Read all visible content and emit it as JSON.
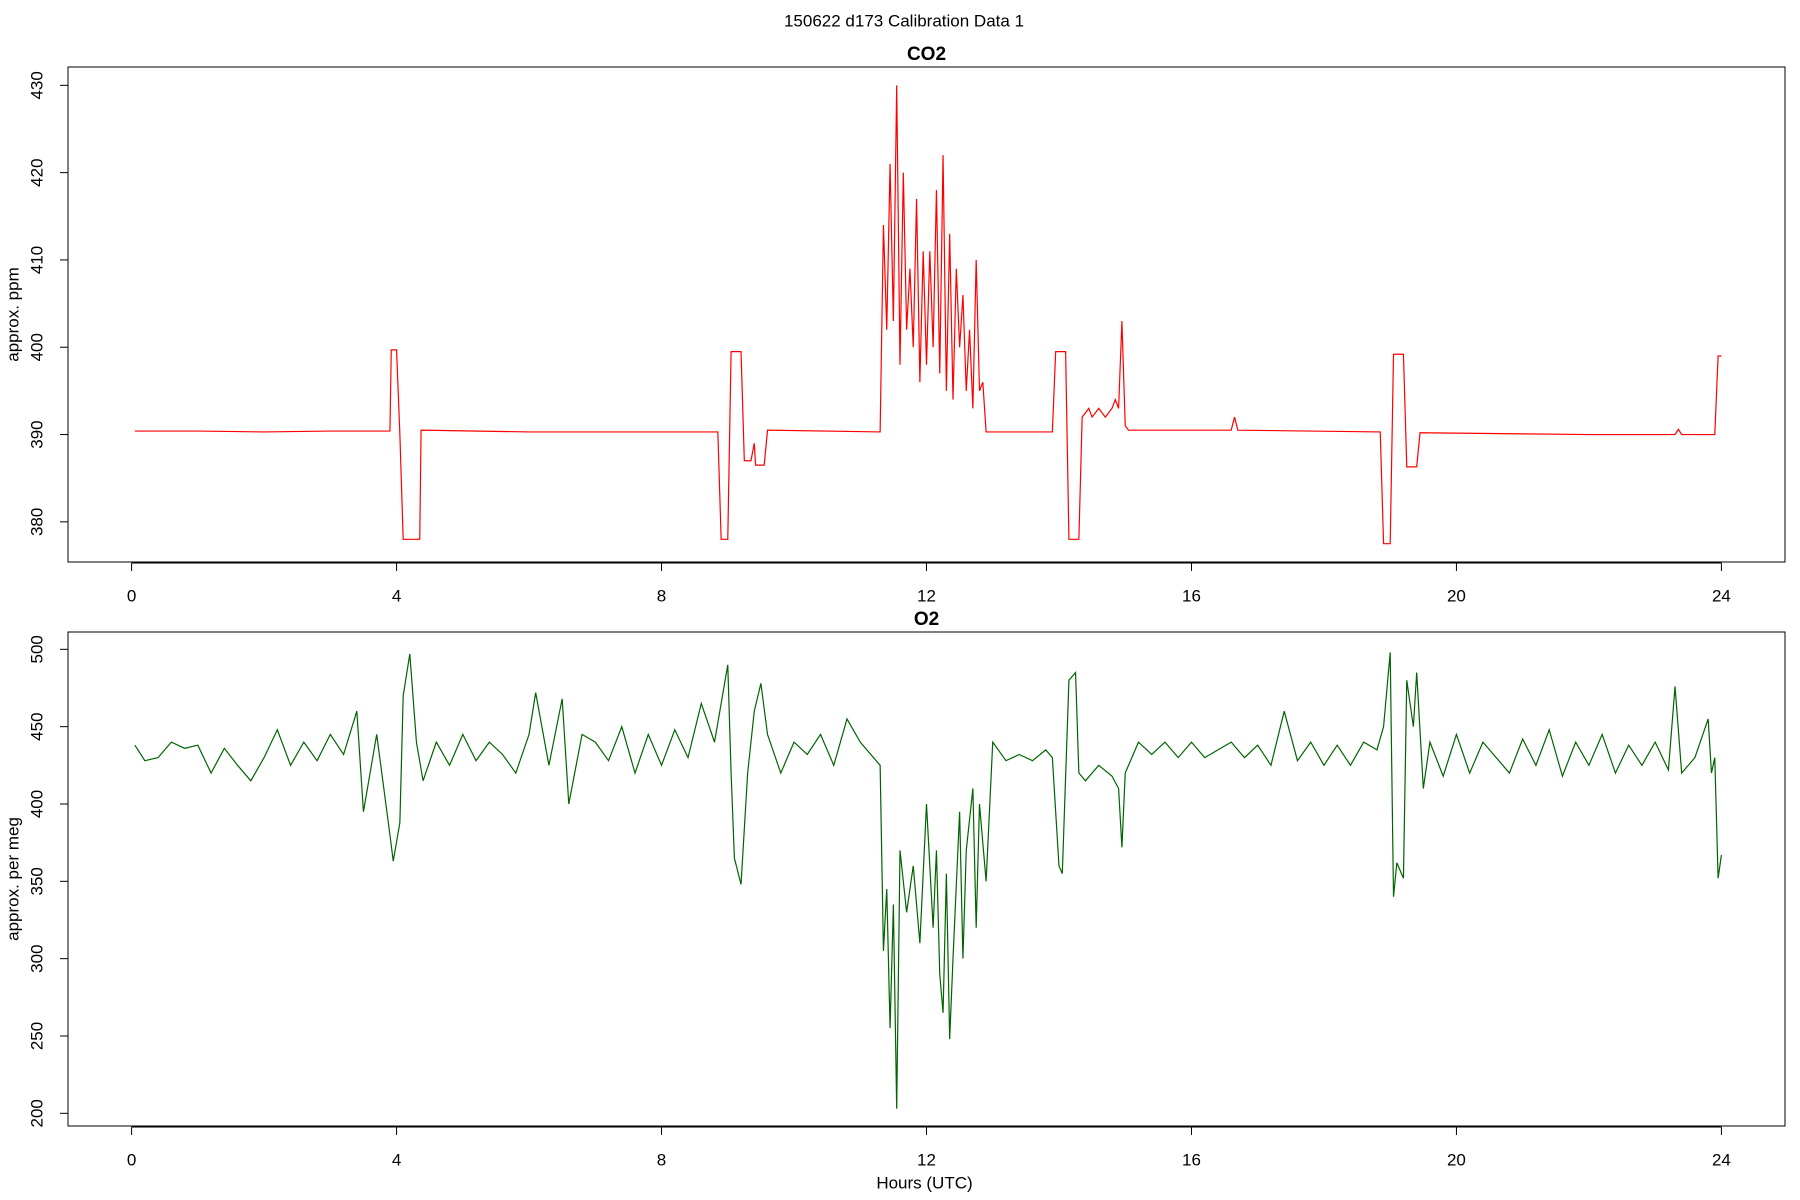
{
  "title": "150622   d173   Calibration Data 1",
  "chart_data": [
    {
      "type": "line",
      "title": "CO2",
      "y_label": "approx. ppm",
      "color": "#ff0000",
      "xlim": [
        -0.96,
        24.96
      ],
      "xticks": [
        0,
        4,
        8,
        12,
        16,
        20,
        24
      ],
      "ylim": [
        375.4,
        432.1
      ],
      "yticks": [
        380,
        390,
        400,
        410,
        420,
        430
      ],
      "x": [
        0.05,
        1.0,
        2.0,
        3.0,
        3.9,
        3.92,
        4.0,
        4.05,
        4.1,
        4.35,
        4.37,
        6.0,
        8.85,
        8.9,
        9.0,
        9.05,
        9.2,
        9.25,
        9.35,
        9.4,
        9.42,
        9.55,
        9.6,
        11.3,
        11.35,
        11.4,
        11.45,
        11.5,
        11.55,
        11.6,
        11.65,
        11.7,
        11.75,
        11.8,
        11.85,
        11.9,
        11.95,
        12.0,
        12.05,
        12.1,
        12.15,
        12.2,
        12.25,
        12.3,
        12.35,
        12.4,
        12.45,
        12.5,
        12.55,
        12.6,
        12.65,
        12.7,
        12.75,
        12.8,
        12.85,
        12.9,
        13.9,
        13.95,
        14.1,
        14.15,
        14.3,
        14.35,
        14.45,
        14.5,
        14.6,
        14.7,
        14.8,
        14.85,
        14.9,
        14.95,
        15.0,
        15.05,
        16.6,
        16.65,
        16.7,
        18.85,
        18.9,
        19.0,
        19.05,
        19.2,
        19.25,
        19.4,
        19.45,
        22.0,
        23.3,
        23.35,
        23.4,
        23.9,
        23.95,
        24.0
      ],
      "values": [
        390.4,
        390.4,
        390.3,
        390.4,
        390.4,
        399.7,
        399.7,
        390,
        378,
        378,
        390.5,
        390.3,
        390.3,
        378,
        378,
        399.5,
        399.5,
        387,
        387,
        389,
        386.5,
        386.5,
        390.5,
        390.3,
        414,
        402,
        421,
        403,
        430,
        398,
        420,
        402,
        409,
        400,
        417,
        396,
        411,
        398,
        411,
        400,
        418,
        397,
        422,
        395,
        413,
        394,
        409,
        400,
        406,
        395,
        402,
        393,
        410,
        395,
        396,
        390.3,
        390.3,
        399.5,
        399.5,
        378,
        378,
        392,
        393,
        392,
        393,
        392,
        393,
        394,
        393,
        403,
        391,
        390.5,
        390.5,
        392,
        390.5,
        390.3,
        377.5,
        377.5,
        399.2,
        399.2,
        386.3,
        386.3,
        390.2,
        390,
        390,
        390.6,
        390,
        390,
        399,
        399
      ]
    },
    {
      "type": "line",
      "title": "O2",
      "y_label": "approx. per meg",
      "x_label": "Hours (UTC)",
      "color": "#006400",
      "xlim": [
        -0.96,
        24.96
      ],
      "xticks": [
        0,
        4,
        8,
        12,
        16,
        20,
        24
      ],
      "ylim": [
        191.8,
        511.2
      ],
      "yticks": [
        200,
        250,
        300,
        350,
        400,
        450,
        500
      ],
      "x": [
        0.05,
        0.2,
        0.4,
        0.6,
        0.8,
        1.0,
        1.2,
        1.4,
        1.6,
        1.8,
        2.0,
        2.2,
        2.4,
        2.6,
        2.8,
        3.0,
        3.2,
        3.4,
        3.5,
        3.7,
        3.9,
        3.95,
        4.05,
        4.1,
        4.2,
        4.3,
        4.4,
        4.6,
        4.8,
        5.0,
        5.2,
        5.4,
        5.6,
        5.8,
        6.0,
        6.1,
        6.3,
        6.5,
        6.6,
        6.8,
        7.0,
        7.2,
        7.4,
        7.6,
        7.8,
        8.0,
        8.2,
        8.4,
        8.6,
        8.8,
        8.9,
        9.0,
        9.05,
        9.1,
        9.2,
        9.3,
        9.4,
        9.5,
        9.6,
        9.8,
        10.0,
        10.2,
        10.4,
        10.6,
        10.8,
        11.0,
        11.2,
        11.3,
        11.35,
        11.4,
        11.45,
        11.5,
        11.55,
        11.6,
        11.7,
        11.8,
        11.9,
        12.0,
        12.1,
        12.15,
        12.2,
        12.25,
        12.3,
        12.35,
        12.4,
        12.5,
        12.55,
        12.6,
        12.7,
        12.75,
        12.8,
        12.9,
        13.0,
        13.2,
        13.4,
        13.6,
        13.8,
        13.9,
        14.0,
        14.05,
        14.15,
        14.25,
        14.3,
        14.4,
        14.6,
        14.8,
        14.9,
        14.95,
        15.0,
        15.2,
        15.4,
        15.6,
        15.8,
        16.0,
        16.2,
        16.4,
        16.6,
        16.8,
        17.0,
        17.2,
        17.4,
        17.6,
        17.8,
        18.0,
        18.2,
        18.4,
        18.6,
        18.8,
        18.9,
        19.0,
        19.05,
        19.1,
        19.2,
        19.25,
        19.35,
        19.4,
        19.5,
        19.6,
        19.8,
        20.0,
        20.2,
        20.4,
        20.6,
        20.8,
        21.0,
        21.2,
        21.4,
        21.6,
        21.8,
        22.0,
        22.2,
        22.4,
        22.6,
        22.8,
        23.0,
        23.2,
        23.3,
        23.4,
        23.6,
        23.8,
        23.85,
        23.9,
        23.95,
        24.0
      ],
      "values": [
        438,
        428,
        430,
        440,
        436,
        438,
        420,
        436,
        425,
        415,
        430,
        448,
        425,
        440,
        428,
        445,
        432,
        460,
        395,
        445,
        380,
        363,
        388,
        470,
        497,
        440,
        415,
        440,
        425,
        445,
        428,
        440,
        432,
        420,
        445,
        472,
        425,
        468,
        400,
        445,
        440,
        428,
        450,
        420,
        445,
        425,
        448,
        430,
        465,
        440,
        465,
        490,
        420,
        365,
        348,
        420,
        460,
        478,
        445,
        420,
        440,
        432,
        445,
        425,
        455,
        440,
        430,
        425,
        305,
        345,
        255,
        335,
        203,
        370,
        330,
        360,
        310,
        400,
        320,
        370,
        290,
        265,
        355,
        248,
        300,
        395,
        300,
        370,
        410,
        320,
        400,
        350,
        440,
        428,
        432,
        428,
        435,
        430,
        360,
        355,
        480,
        485,
        420,
        415,
        425,
        418,
        410,
        372,
        420,
        440,
        432,
        440,
        430,
        440,
        430,
        435,
        440,
        430,
        438,
        425,
        460,
        428,
        440,
        425,
        438,
        425,
        440,
        435,
        450,
        498,
        340,
        362,
        352,
        480,
        450,
        485,
        410,
        440,
        418,
        445,
        420,
        440,
        430,
        420,
        442,
        425,
        448,
        418,
        440,
        425,
        445,
        420,
        438,
        425,
        440,
        422,
        476,
        420,
        430,
        455,
        420,
        430,
        352,
        367
      ]
    }
  ]
}
